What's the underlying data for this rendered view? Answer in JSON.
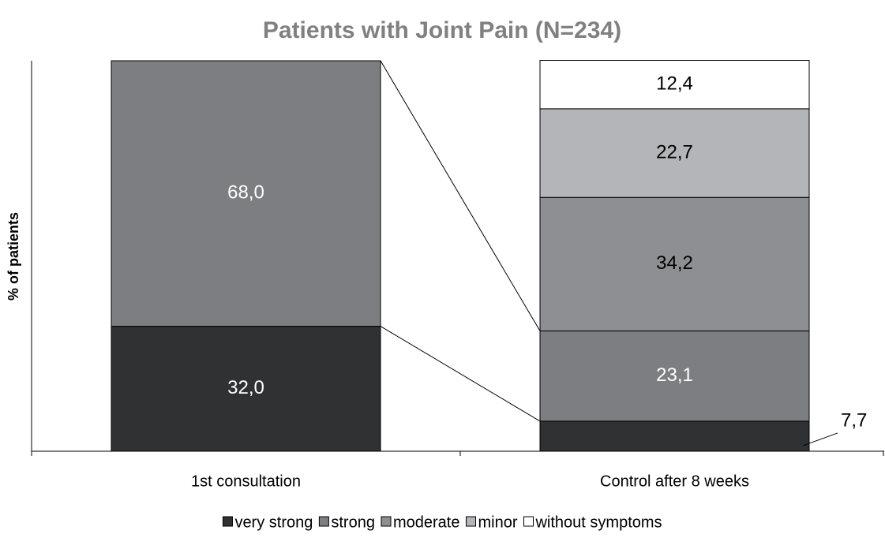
{
  "chart_data": {
    "type": "stacked-bar",
    "title": "Patients with Joint Pain (N=234)",
    "y_label": "% of patients",
    "categories": [
      "1st consultation",
      "Control after 8 weeks"
    ],
    "series": [
      {
        "name": "very strong",
        "color": "#2f3133",
        "values": [
          32.0,
          7.7
        ],
        "value_labels": [
          "32,0",
          "7,7"
        ]
      },
      {
        "name": "strong",
        "color": "#7d7e82",
        "values": [
          68.0,
          23.1
        ],
        "value_labels": [
          "68,0",
          "23,1"
        ]
      },
      {
        "name": "moderate",
        "color": "#8e8f93",
        "values": [
          null,
          34.2
        ],
        "value_labels": [
          null,
          "34,2"
        ]
      },
      {
        "name": "minor",
        "color": "#b4b5b9",
        "values": [
          null,
          22.7
        ],
        "value_labels": [
          null,
          "22,7"
        ]
      },
      {
        "name": "without symptoms",
        "color": "#ffffff",
        "values": [
          null,
          12.4
        ],
        "value_labels": [
          null,
          "12,4"
        ]
      }
    ],
    "ylim": [
      0,
      100
    ],
    "legend": "bottom"
  }
}
